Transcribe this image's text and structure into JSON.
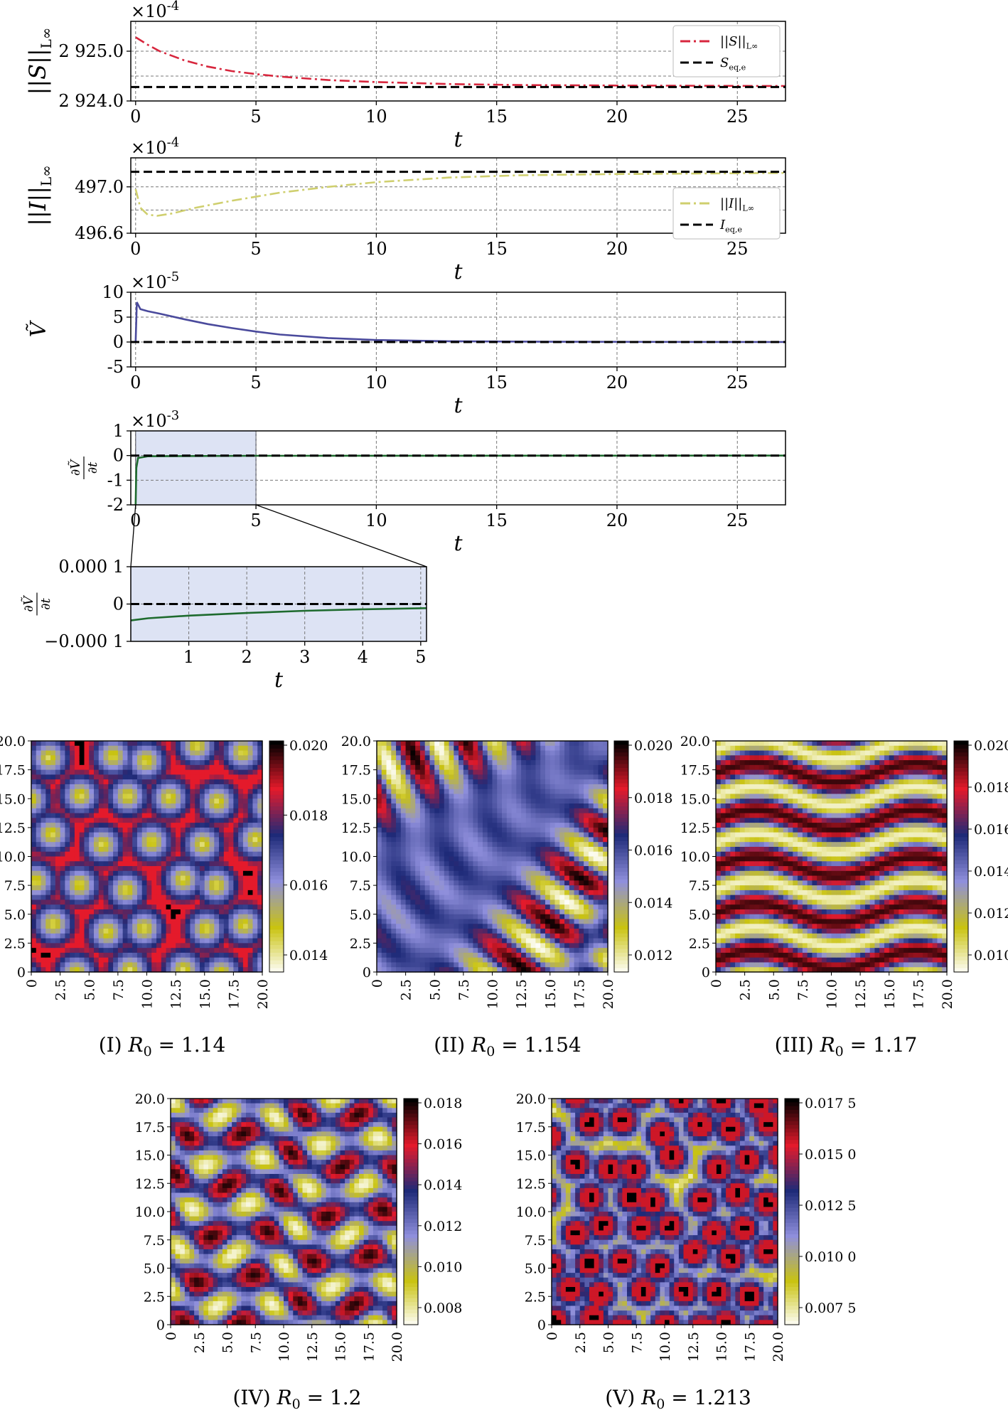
{
  "chart_data": [
    {
      "id": "S",
      "type": "line",
      "ylabel": "||S||_{L^∞}",
      "xlabel": "t",
      "exponent": "×10^{-4}",
      "xlim": [
        -0.2,
        27
      ],
      "ylim": [
        2924.0,
        2925.6
      ],
      "xticks": [
        "0",
        "5",
        "10",
        "15",
        "20",
        "25"
      ],
      "yticks": [
        "2 924.0",
        "2 925.0"
      ],
      "ytick_values": [
        2924.0,
        2925.0
      ],
      "legend_position": "upper right",
      "series": [
        {
          "name": "||S||_{L^∞}",
          "style": "dashdot",
          "color": "#d7263d",
          "x": [
            0,
            0.5,
            1,
            2,
            3,
            4,
            5,
            6,
            8,
            10,
            13,
            16,
            20,
            27
          ],
          "y": [
            2925.28,
            2925.13,
            2925.0,
            2924.82,
            2924.69,
            2924.6,
            2924.54,
            2924.49,
            2924.42,
            2924.38,
            2924.34,
            2924.32,
            2924.31,
            2924.3
          ]
        },
        {
          "name": "S_{eq,e}",
          "style": "dashed",
          "color": "#000000",
          "constant": 2924.28
        }
      ]
    },
    {
      "id": "I",
      "type": "line",
      "ylabel": "||I||_{L^∞}",
      "xlabel": "t",
      "exponent": "×10^{-4}",
      "xlim": [
        -0.2,
        27
      ],
      "ylim": [
        496.6,
        497.25
      ],
      "xticks": [
        "0",
        "5",
        "10",
        "15",
        "20",
        "25"
      ],
      "yticks": [
        "496.6",
        "497.0"
      ],
      "ytick_values": [
        496.6,
        497.0
      ],
      "legend_position": "right",
      "series": [
        {
          "name": "||I||_{L^∞}",
          "style": "dashdot",
          "color": "#cfcf6e",
          "x": [
            0,
            0.2,
            0.5,
            0.9,
            1.5,
            2.5,
            4,
            6,
            8,
            10,
            13,
            16,
            20,
            27
          ],
          "y": [
            496.98,
            496.82,
            496.76,
            496.75,
            496.77,
            496.82,
            496.88,
            496.95,
            497.0,
            497.04,
            497.08,
            497.1,
            497.11,
            497.12
          ]
        },
        {
          "name": "I_{eq,e}",
          "style": "dashed",
          "color": "#000000",
          "constant": 497.13
        }
      ]
    },
    {
      "id": "V",
      "type": "line",
      "ylabel": "Ṽ",
      "xlabel": "t",
      "exponent": "×10^{-5}",
      "xlim": [
        -0.2,
        27
      ],
      "ylim": [
        -5,
        10
      ],
      "xticks": [
        "0",
        "5",
        "10",
        "15",
        "20",
        "25"
      ],
      "yticks": [
        "10",
        "5",
        "0",
        "-5"
      ],
      "ytick_values": [
        10,
        5,
        0,
        -5
      ],
      "series": [
        {
          "name": "",
          "style": "solid",
          "color": "#4a4a9c",
          "x": [
            0,
            0.05,
            0.2,
            0.5,
            1,
            2,
            3,
            4,
            5,
            6,
            8,
            10,
            13,
            17,
            27
          ],
          "y": [
            0,
            8,
            6.6,
            6.2,
            5.7,
            4.6,
            3.6,
            2.8,
            2.1,
            1.5,
            0.8,
            0.4,
            0.15,
            0.05,
            0
          ]
        },
        {
          "name": "",
          "style": "dashed",
          "color": "#000000",
          "constant": 0
        }
      ]
    },
    {
      "id": "dV",
      "type": "line",
      "ylabel": "∂Ṽ/∂t",
      "xlabel": "t",
      "exponent": "×10^{-3}",
      "xlim": [
        -0.2,
        27
      ],
      "ylim": [
        -2,
        1
      ],
      "xticks": [
        "0",
        "5",
        "10",
        "15",
        "20",
        "25"
      ],
      "yticks": [
        "1",
        "0",
        "-1",
        "-2"
      ],
      "ytick_values": [
        1,
        0,
        -1,
        -2
      ],
      "shaded_region_x": [
        0,
        5
      ],
      "series": [
        {
          "name": "",
          "style": "solid",
          "color": "#1e6b2e",
          "x": [
            0,
            0.03,
            0.1,
            0.5,
            5,
            27
          ],
          "y": [
            -2,
            -0.5,
            -0.1,
            -0.03,
            -0.01,
            0
          ]
        },
        {
          "name": "",
          "style": "dashed",
          "color": "#000000",
          "constant": 0
        }
      ]
    },
    {
      "id": "dV_zoom",
      "type": "line",
      "ylabel": "∂Ṽ/∂t",
      "xlabel": "t",
      "xlim": [
        0,
        5.1
      ],
      "ylim": [
        -0.0001,
        0.0001
      ],
      "xticks": [
        "1",
        "2",
        "3",
        "4",
        "5"
      ],
      "xtick_values": [
        1,
        2,
        3,
        4,
        5
      ],
      "yticks": [
        "0.000 1",
        "0",
        "−0.000 1"
      ],
      "ytick_values": [
        0.0001,
        0,
        -0.0001
      ],
      "series": [
        {
          "name": "",
          "style": "solid",
          "color": "#1e6b2e",
          "x": [
            0,
            0.3,
            1,
            2,
            3,
            4,
            5.1
          ],
          "y": [
            -4.4e-05,
            -3.8e-05,
            -3.1e-05,
            -2.4e-05,
            -1.8e-05,
            -1.4e-05,
            -1.1e-05
          ]
        },
        {
          "name": "",
          "style": "dashed",
          "color": "#000000",
          "constant": 0
        }
      ]
    }
  ],
  "heatmaps": [
    {
      "caption": "(I) R_0 = 1.14",
      "pattern": "spots",
      "cbar_ticks": [
        "0.020",
        "0.018",
        "0.016",
        "0.014"
      ]
    },
    {
      "caption": "(II) R_0 = 1.154",
      "pattern": "mixed",
      "cbar_ticks": [
        "0.020",
        "0.018",
        "0.016",
        "0.014",
        "0.012"
      ]
    },
    {
      "caption": "(III) R_0 = 1.17",
      "pattern": "stripes",
      "cbar_ticks": [
        "0.020",
        "0.018",
        "0.016",
        "0.014",
        "0.012",
        "0.010"
      ]
    },
    {
      "caption": "(IV) R_0 = 1.2",
      "pattern": "labyrinth",
      "cbar_ticks": [
        "0.018",
        "0.016",
        "0.014",
        "0.012",
        "0.010",
        "0.008"
      ]
    },
    {
      "caption": "(V) R_0 = 1.213",
      "pattern": "holes",
      "cbar_ticks": [
        "0.017 5",
        "0.015 0",
        "0.012 5",
        "0.010 0",
        "0.007 5"
      ]
    }
  ],
  "heatmap_axes": {
    "ticks": [
      "0",
      "2.5",
      "5.0",
      "7.5",
      "10.0",
      "12.5",
      "15.0",
      "17.5",
      "20.0"
    ]
  },
  "colors": {
    "colormap": [
      "#ffffff",
      "#c9c311",
      "#8f8fdc",
      "#1e2a78",
      "#e41a2b",
      "#000000"
    ]
  }
}
